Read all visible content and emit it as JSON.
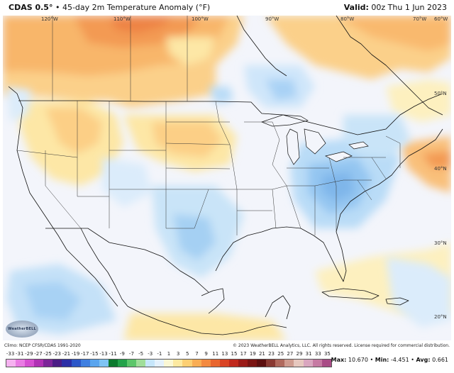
{
  "header": {
    "model": "CDAS 0.5°",
    "separator": "•",
    "title": "45-day 2m Temperature Anomaly (°F)",
    "valid_label": "Valid:",
    "valid_value": "00z Thu 1 Jun 2023"
  },
  "map": {
    "lon_labels": [
      "120°W",
      "110°W",
      "100°W",
      "90°W",
      "80°W",
      "70°W",
      "60°W"
    ],
    "lat_labels": [
      "50°N",
      "40°N",
      "30°N",
      "20°N"
    ]
  },
  "footer": {
    "climo": "Climo: NCEP CFSR/CDAS 1991-2020",
    "copyright": "© 2023 WeatherBELL Analytics, LLC. All rights reserved. License required for commercial distribution.",
    "logo_text": "WeatherBELL"
  },
  "colorbar": {
    "labels": [
      "-33",
      "-31",
      "-29",
      "-27",
      "-25",
      "-23",
      "-21",
      "-19",
      "-17",
      "-15",
      "-13",
      "-11",
      "-9",
      "-7",
      "-5",
      "-3",
      "-1",
      "1",
      "3",
      "5",
      "7",
      "9",
      "11",
      "13",
      "15",
      "17",
      "19",
      "21",
      "23",
      "25",
      "27",
      "29",
      "31",
      "33",
      "35"
    ],
    "colors": [
      "#f6b2f0",
      "#e97be3",
      "#d64fd1",
      "#b031b4",
      "#7c2598",
      "#4b1d85",
      "#2c2fa6",
      "#2c57c8",
      "#3f7fe0",
      "#5aa5ee",
      "#7ec4f4",
      "#0c7a2e",
      "#23a24a",
      "#5cc66a",
      "#a0de9a",
      "#c6e6fb",
      "#e4f1fd",
      "#fbf7d4",
      "#fde9a0",
      "#fccf73",
      "#f9ad54",
      "#f38a40",
      "#e8662f",
      "#d94425",
      "#c0291d",
      "#9a1b17",
      "#7a1412",
      "#5c0f0f",
      "#8a3a33",
      "#b06a5e",
      "#cf9c90",
      "#e6c8bf",
      "#d9a6bf",
      "#c67aa3",
      "#a94c86"
    ]
  },
  "stats": {
    "max_label": "Max:",
    "max_value": "10.670",
    "min_label": "Min:",
    "min_value": "-4.451",
    "avg_label": "Avg:",
    "avg_value": "0.661"
  }
}
